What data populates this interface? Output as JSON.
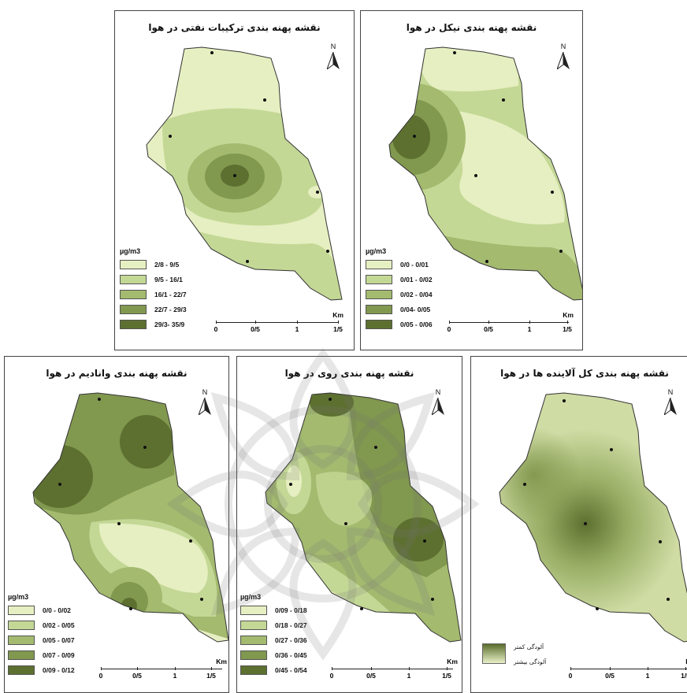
{
  "legend_unit": "µg/m3",
  "north_label": "N",
  "scale": {
    "unit": "Km",
    "ticks": [
      "0",
      "0/5",
      "1",
      "1/5"
    ]
  },
  "panels": [
    {
      "title": "نقشه پهنه بندی ترکیبات نفتی در هوا",
      "classes": [
        {
          "label": "2/8 - 9/5",
          "color": "#e6efc1"
        },
        {
          "label": "9/5 - 16/1",
          "color": "#c4d896"
        },
        {
          "label": "16/1 - 22/7",
          "color": "#a3ba6f"
        },
        {
          "label": "22/7 - 29/3",
          "color": "#81984f"
        },
        {
          "label": "29/3- 35/9",
          "color": "#5d7030"
        }
      ]
    },
    {
      "title": "نقشه پهنه بندی نیکل در هوا",
      "classes": [
        {
          "label": "0/0 - 0/01",
          "color": "#e6efc1"
        },
        {
          "label": "0/01 - 0/02",
          "color": "#c4d896"
        },
        {
          "label": "0/02 - 0/04",
          "color": "#a3ba6f"
        },
        {
          "label": "0/04- 0/05",
          "color": "#81984f"
        },
        {
          "label": "0/05 - 0/06",
          "color": "#5d7030"
        }
      ]
    },
    {
      "title": "نقشه پهنه بندی وانادیم در هوا",
      "classes": [
        {
          "label": "0/0 - 0/02",
          "color": "#e6efc1"
        },
        {
          "label": "0/02 - 0/05",
          "color": "#c4d896"
        },
        {
          "label": "0/05 - 0/07",
          "color": "#a3ba6f"
        },
        {
          "label": "0/07 - 0/09",
          "color": "#81984f"
        },
        {
          "label": "0/09 - 0/12",
          "color": "#5d7030"
        }
      ]
    },
    {
      "title": "نقشه پهنه بندی روی در هوا",
      "classes": [
        {
          "label": "0/09 - 0/18",
          "color": "#e6efc1"
        },
        {
          "label": "0/18 - 0/27",
          "color": "#c4d896"
        },
        {
          "label": "0/27 - 0/36",
          "color": "#a3ba6f"
        },
        {
          "label": "0/36 - 0/45",
          "color": "#81984f"
        },
        {
          "label": "0/45 - 0/54",
          "color": "#5d7030"
        }
      ]
    },
    {
      "title": "نقشه پهنه بندی کل آلاینده ها در هوا",
      "gradient_labels": [
        "آلودگی کمتر",
        "آلودگی بیشتر"
      ]
    }
  ]
}
